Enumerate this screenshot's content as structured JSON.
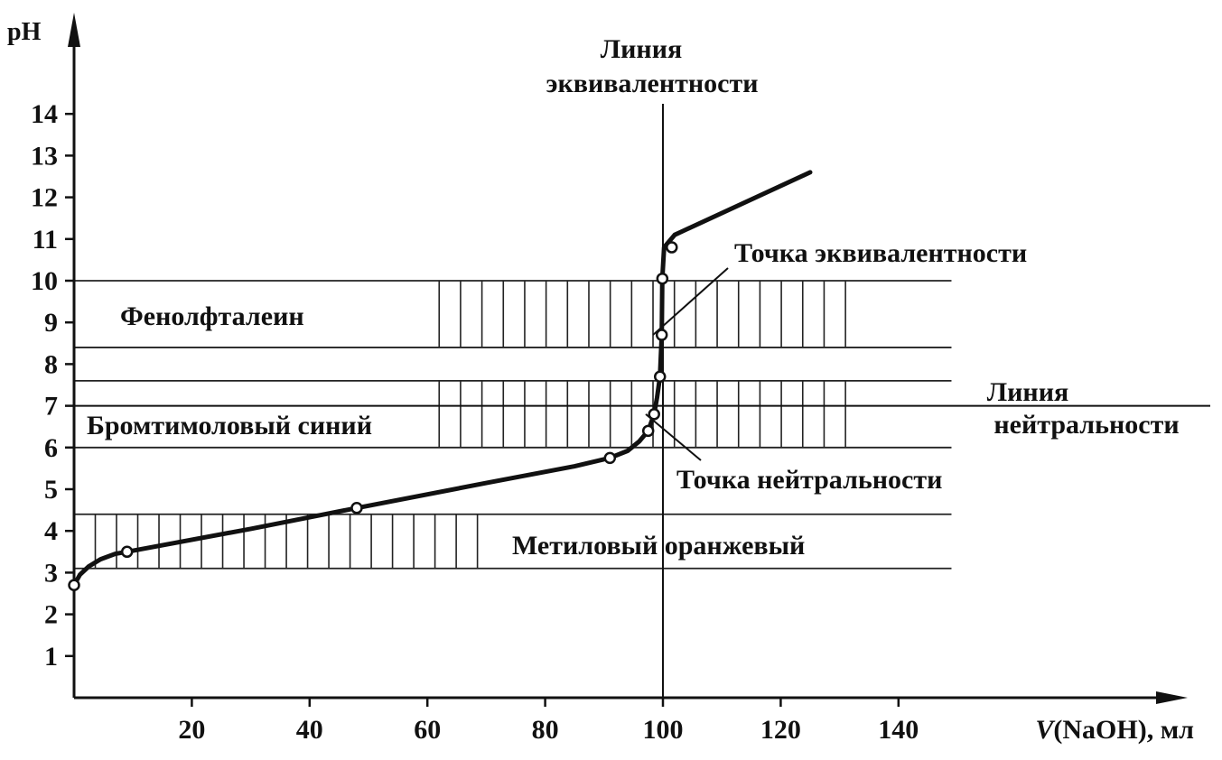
{
  "chart_data": {
    "type": "line",
    "xlabel_italic": "V",
    "xlabel_rest": "(NaOH), мл",
    "ylabel": "pH",
    "x_ticks": [
      20,
      40,
      60,
      80,
      100,
      120,
      140
    ],
    "y_ticks": [
      1,
      2,
      3,
      4,
      5,
      6,
      7,
      8,
      9,
      10,
      11,
      12,
      13,
      14
    ],
    "xlim": [
      0,
      150
    ],
    "ylim": [
      0,
      14
    ],
    "curve": [
      [
        0,
        2.7
      ],
      [
        1,
        2.95
      ],
      [
        2.5,
        3.15
      ],
      [
        4.5,
        3.32
      ],
      [
        7,
        3.45
      ],
      [
        9,
        3.5
      ],
      [
        30,
        4.05
      ],
      [
        48,
        4.55
      ],
      [
        70,
        5.15
      ],
      [
        85,
        5.55
      ],
      [
        91,
        5.75
      ],
      [
        94,
        5.92
      ],
      [
        96,
        6.15
      ],
      [
        97.5,
        6.4
      ],
      [
        98.5,
        6.8
      ],
      [
        99,
        7.2
      ],
      [
        99.5,
        7.7
      ],
      [
        99.8,
        8.7
      ],
      [
        99.9,
        10.05
      ],
      [
        100.2,
        10.8
      ],
      [
        102,
        11.1
      ],
      [
        125,
        12.6
      ]
    ],
    "markers": [
      [
        0,
        2.7
      ],
      [
        9,
        3.5
      ],
      [
        48,
        4.55
      ],
      [
        91,
        5.75
      ],
      [
        97.5,
        6.4
      ],
      [
        98.5,
        6.8
      ],
      [
        99.5,
        7.7
      ],
      [
        99.8,
        8.7
      ],
      [
        99.9,
        10.05
      ],
      [
        101.5,
        10.8
      ]
    ],
    "indicators": [
      {
        "name": "Фенолфталеин",
        "ph_range": [
          8.4,
          10.0
        ],
        "hatch_v_range": [
          62,
          131
        ],
        "line_v_end": 149
      },
      {
        "name": "Бромтимоловый синий",
        "ph_range": [
          6.0,
          7.6
        ],
        "hatch_v_range": [
          62,
          131
        ],
        "line_v_end": 149
      },
      {
        "name": "Метиловый оранжевый",
        "ph_range": [
          3.1,
          4.4
        ],
        "hatch_v_range": [
          0,
          68.5
        ],
        "line_v_end": 149
      }
    ],
    "equivalence_line": {
      "v": 100,
      "label_line1": "Линия",
      "label_line2": "эквивалентности"
    },
    "neutrality_line": {
      "ph": 7,
      "label_line1": "Линия",
      "label_line2": "нейтральности"
    },
    "annotations": {
      "equivalence_point": "Точка эквивалентности",
      "neutrality_point": "Точка нейтральности"
    }
  }
}
